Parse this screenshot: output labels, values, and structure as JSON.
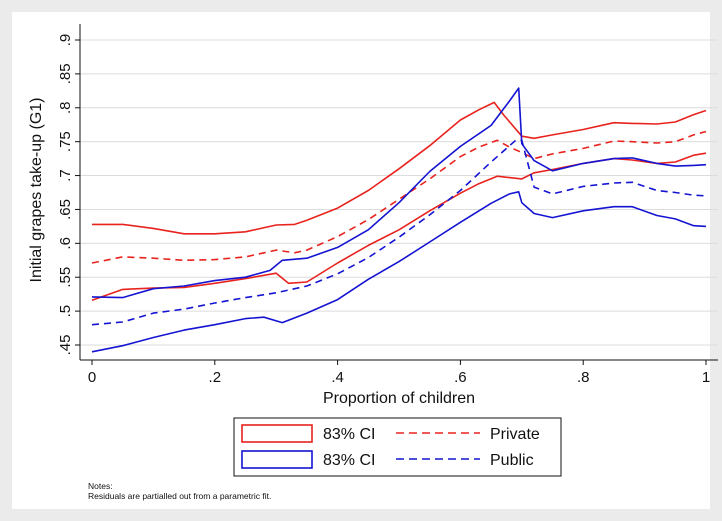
{
  "chart_data": {
    "type": "line",
    "title": "",
    "xlabel": "Proportion of children",
    "ylabel": "Initial grapes take-up (G1)",
    "xlim": [
      0,
      1
    ],
    "ylim": [
      0.435,
      0.925
    ],
    "x_ticks": [
      0,
      0.2,
      0.4,
      0.6,
      0.8,
      1
    ],
    "x_tick_labels": [
      "0",
      ".2",
      ".4",
      ".6",
      ".8",
      "1"
    ],
    "y_ticks": [
      0.45,
      0.5,
      0.55,
      0.6,
      0.65,
      0.7,
      0.75,
      0.8,
      0.85,
      0.9
    ],
    "y_tick_labels": [
      ".45",
      ".5",
      ".55",
      ".6",
      ".65",
      ".7",
      ".75",
      ".8",
      ".85",
      ".9"
    ],
    "grid": "horizontal",
    "legend_position": "bottom",
    "colors": {
      "private": "#e8231e",
      "public": "#1414d2"
    },
    "series": [
      {
        "name": "Private",
        "style": "dashed",
        "color": "#e8231e",
        "x": [
          0,
          0.05,
          0.1,
          0.15,
          0.2,
          0.25,
          0.3,
          0.33,
          0.35,
          0.4,
          0.45,
          0.5,
          0.55,
          0.6,
          0.63,
          0.66,
          0.68,
          0.7,
          0.72,
          0.75,
          0.8,
          0.85,
          0.88,
          0.92,
          0.95,
          0.98,
          1
        ],
        "values": [
          0.571,
          0.58,
          0.578,
          0.575,
          0.576,
          0.58,
          0.59,
          0.586,
          0.59,
          0.61,
          0.635,
          0.665,
          0.695,
          0.728,
          0.742,
          0.752,
          0.742,
          0.734,
          0.725,
          0.732,
          0.74,
          0.751,
          0.75,
          0.748,
          0.75,
          0.76,
          0.765
        ]
      },
      {
        "name": "",
        "style": "solid",
        "group": "Private 83% CI upper",
        "color": "#e8231e",
        "x": [
          0,
          0.05,
          0.1,
          0.15,
          0.2,
          0.25,
          0.3,
          0.33,
          0.35,
          0.4,
          0.45,
          0.5,
          0.55,
          0.6,
          0.63,
          0.655,
          0.67,
          0.7,
          0.72,
          0.75,
          0.8,
          0.85,
          0.88,
          0.92,
          0.95,
          0.98,
          1
        ],
        "values": [
          0.628,
          0.628,
          0.622,
          0.614,
          0.614,
          0.617,
          0.627,
          0.628,
          0.634,
          0.652,
          0.678,
          0.71,
          0.744,
          0.782,
          0.797,
          0.808,
          0.79,
          0.758,
          0.755,
          0.76,
          0.768,
          0.778,
          0.777,
          0.776,
          0.779,
          0.79,
          0.796
        ]
      },
      {
        "name": "",
        "style": "solid",
        "group": "Private 83% CI lower",
        "color": "#e8231e",
        "x": [
          0,
          0.05,
          0.1,
          0.15,
          0.2,
          0.25,
          0.3,
          0.32,
          0.35,
          0.4,
          0.45,
          0.5,
          0.55,
          0.6,
          0.63,
          0.66,
          0.68,
          0.7,
          0.72,
          0.75,
          0.8,
          0.85,
          0.88,
          0.92,
          0.95,
          0.98,
          1
        ],
        "values": [
          0.516,
          0.532,
          0.534,
          0.535,
          0.541,
          0.548,
          0.556,
          0.541,
          0.543,
          0.571,
          0.597,
          0.62,
          0.648,
          0.674,
          0.688,
          0.699,
          0.697,
          0.695,
          0.704,
          0.709,
          0.718,
          0.725,
          0.723,
          0.718,
          0.72,
          0.73,
          0.733
        ]
      },
      {
        "name": "Public",
        "style": "dashed",
        "color": "#1414d2",
        "x": [
          0,
          0.05,
          0.1,
          0.15,
          0.2,
          0.25,
          0.3,
          0.35,
          0.4,
          0.45,
          0.5,
          0.55,
          0.6,
          0.65,
          0.69,
          0.7,
          0.72,
          0.75,
          0.8,
          0.85,
          0.88,
          0.92,
          0.95,
          0.98,
          1
        ],
        "values": [
          0.48,
          0.484,
          0.497,
          0.503,
          0.512,
          0.52,
          0.527,
          0.537,
          0.555,
          0.579,
          0.609,
          0.642,
          0.678,
          0.72,
          0.752,
          0.752,
          0.683,
          0.673,
          0.684,
          0.689,
          0.69,
          0.678,
          0.675,
          0.671,
          0.67
        ]
      },
      {
        "name": "",
        "style": "solid",
        "group": "Public 83% CI upper",
        "color": "#1414d2",
        "x": [
          0,
          0.05,
          0.1,
          0.15,
          0.2,
          0.25,
          0.29,
          0.31,
          0.35,
          0.4,
          0.45,
          0.5,
          0.55,
          0.6,
          0.65,
          0.68,
          0.695,
          0.7,
          0.72,
          0.75,
          0.8,
          0.85,
          0.88,
          0.92,
          0.95,
          0.98,
          1
        ],
        "values": [
          0.521,
          0.52,
          0.533,
          0.537,
          0.545,
          0.55,
          0.56,
          0.575,
          0.578,
          0.594,
          0.62,
          0.66,
          0.706,
          0.743,
          0.774,
          0.81,
          0.829,
          0.747,
          0.722,
          0.707,
          0.718,
          0.725,
          0.726,
          0.718,
          0.714,
          0.715,
          0.716
        ]
      },
      {
        "name": "",
        "style": "solid",
        "group": "Public 83% CI lower",
        "color": "#1414d2",
        "x": [
          0,
          0.05,
          0.1,
          0.15,
          0.2,
          0.25,
          0.28,
          0.31,
          0.35,
          0.4,
          0.45,
          0.5,
          0.55,
          0.6,
          0.65,
          0.68,
          0.695,
          0.7,
          0.72,
          0.75,
          0.8,
          0.85,
          0.88,
          0.92,
          0.95,
          0.98,
          1
        ],
        "values": [
          0.44,
          0.449,
          0.461,
          0.472,
          0.48,
          0.489,
          0.491,
          0.483,
          0.497,
          0.517,
          0.547,
          0.573,
          0.602,
          0.631,
          0.659,
          0.673,
          0.676,
          0.66,
          0.644,
          0.638,
          0.648,
          0.654,
          0.654,
          0.641,
          0.636,
          0.626,
          0.625
        ]
      }
    ],
    "legend": {
      "entries": [
        {
          "label": "83% CI",
          "kind": "box",
          "color": "#e8231e"
        },
        {
          "label": "Private",
          "kind": "dashed",
          "color": "#e8231e"
        },
        {
          "label": "83% CI",
          "kind": "box",
          "color": "#1414d2"
        },
        {
          "label": "Public",
          "kind": "dashed",
          "color": "#1414d2"
        }
      ]
    },
    "notes": [
      "Notes:",
      "Residuals are partialled out from a parametric fit."
    ]
  }
}
